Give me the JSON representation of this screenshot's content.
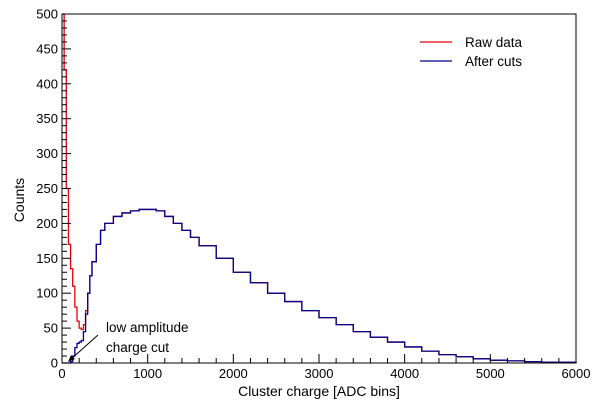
{
  "chart_data": {
    "type": "line",
    "xlabel": "Cluster charge [ADC bins]",
    "ylabel": "Counts",
    "xlim": [
      0,
      6000
    ],
    "ylim": [
      0,
      500
    ],
    "x_ticks": [
      "0",
      "1000",
      "2000",
      "3000",
      "4000",
      "5000",
      "6000"
    ],
    "y_ticks": [
      "0",
      "50",
      "100",
      "150",
      "200",
      "250",
      "300",
      "350",
      "400",
      "450",
      "500"
    ],
    "legend_position": "top-right",
    "grid": false,
    "series": [
      {
        "name": "Raw data",
        "color": "#e8000b",
        "x": [
          0,
          25,
          50,
          75,
          100,
          125,
          150,
          175,
          200,
          225,
          250,
          275,
          300,
          325,
          350,
          400,
          450,
          500,
          600,
          700,
          800,
          900,
          1000,
          1100,
          1200,
          1300,
          1400,
          1500,
          1600,
          1800,
          2000,
          2200,
          2400,
          2600,
          2800,
          3000,
          3200,
          3400,
          3600,
          3800,
          4000,
          4200,
          4400,
          4600,
          4800,
          5000,
          5200,
          5400,
          5600,
          5800,
          6000
        ],
        "values": [
          500,
          420,
          250,
          170,
          135,
          110,
          80,
          60,
          50,
          48,
          55,
          75,
          100,
          125,
          145,
          170,
          190,
          200,
          210,
          215,
          218,
          220,
          220,
          218,
          210,
          200,
          190,
          180,
          168,
          150,
          130,
          115,
          100,
          88,
          75,
          65,
          55,
          45,
          37,
          30,
          23,
          17,
          12,
          9,
          6,
          4,
          3,
          2,
          1,
          1,
          0
        ]
      },
      {
        "name": "After cuts",
        "color": "#00008b",
        "x": [
          0,
          50,
          100,
          125,
          150,
          175,
          200,
          225,
          250,
          275,
          300,
          325,
          350,
          400,
          450,
          500,
          600,
          700,
          800,
          900,
          1000,
          1100,
          1200,
          1300,
          1400,
          1500,
          1600,
          1800,
          2000,
          2200,
          2400,
          2600,
          2800,
          3000,
          3200,
          3400,
          3600,
          3800,
          4000,
          4200,
          4400,
          4600,
          4800,
          5000,
          5200,
          5400,
          5600,
          5800,
          6000
        ],
        "values": [
          0,
          0,
          2,
          10,
          22,
          28,
          30,
          32,
          45,
          70,
          100,
          125,
          145,
          170,
          190,
          200,
          210,
          215,
          218,
          220,
          220,
          218,
          210,
          200,
          190,
          180,
          168,
          150,
          130,
          115,
          100,
          88,
          75,
          65,
          55,
          45,
          37,
          30,
          23,
          17,
          12,
          9,
          6,
          4,
          3,
          2,
          1,
          1,
          0
        ]
      }
    ],
    "annotation": {
      "lines": [
        "low amplitude",
        "charge cut"
      ],
      "points_to": {
        "x": 50,
        "y": 0
      }
    }
  }
}
